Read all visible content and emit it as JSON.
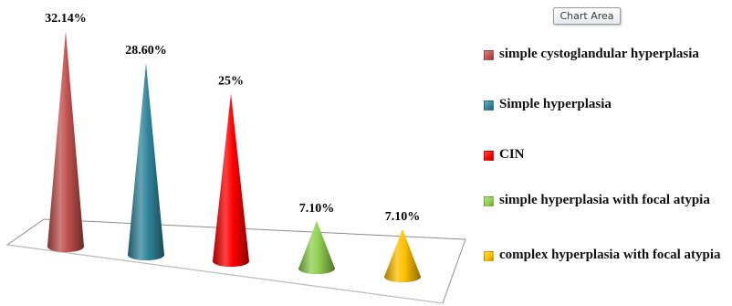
{
  "tooltip": {
    "text": "Chart Area"
  },
  "chart_data": {
    "type": "bar",
    "style": "3d-cone",
    "categories": [
      "simple cystoglandular hyperplasia",
      "Simple hyperplasia",
      "CIN",
      "simple hyperplasia with focal atypia",
      "complex hyperplasia with focal atypia"
    ],
    "values": [
      32.14,
      28.6,
      25,
      7.1,
      7.1
    ],
    "data_labels": [
      "32.14%",
      "28.60%",
      "25%",
      "7.10%",
      "7.10%"
    ],
    "colors": [
      "#c0504d",
      "#31859c",
      "#ff0000",
      "#92d050",
      "#ffc000"
    ],
    "title": "",
    "xlabel": "",
    "ylabel": "",
    "ylim": [
      0,
      35
    ],
    "grid": false,
    "legend": "right"
  }
}
